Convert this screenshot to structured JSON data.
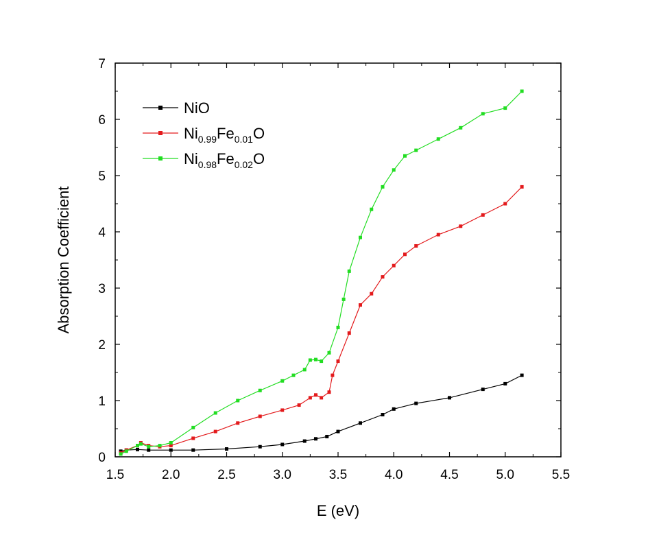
{
  "chart_data": {
    "type": "line",
    "title": "",
    "xlabel": "E (eV)",
    "ylabel": "Absorption Coefficient",
    "xlim": [
      1.5,
      5.5
    ],
    "ylim": [
      0,
      7
    ],
    "xticks": [
      "1.5",
      "2.0",
      "2.5",
      "3.0",
      "3.5",
      "4.0",
      "4.5",
      "5.0",
      "5.5"
    ],
    "yticks": [
      "0",
      "1",
      "2",
      "3",
      "4",
      "5",
      "6",
      "7"
    ],
    "grid": false,
    "legend_position": "top-left",
    "series": [
      {
        "name": "NiO",
        "name_parts": [
          {
            "t": "NiO",
            "sub": false
          }
        ],
        "color": "#000000",
        "x": [
          1.55,
          1.6,
          1.7,
          1.8,
          2.0,
          2.2,
          2.5,
          2.8,
          3.0,
          3.2,
          3.3,
          3.4,
          3.5,
          3.7,
          3.9,
          4.0,
          4.2,
          4.5,
          4.8,
          5.0,
          5.15
        ],
        "y": [
          0.1,
          0.12,
          0.13,
          0.12,
          0.12,
          0.12,
          0.14,
          0.18,
          0.22,
          0.28,
          0.32,
          0.36,
          0.45,
          0.6,
          0.75,
          0.85,
          0.95,
          1.05,
          1.2,
          1.3,
          1.45
        ]
      },
      {
        "name": "Ni0.99Fe0.01O",
        "name_parts": [
          {
            "t": "Ni",
            "sub": false
          },
          {
            "t": "0.99",
            "sub": true
          },
          {
            "t": "Fe",
            "sub": false
          },
          {
            "t": "0.01",
            "sub": true
          },
          {
            "t": "O",
            "sub": false
          }
        ],
        "color": "#e31a1c",
        "x": [
          1.55,
          1.6,
          1.7,
          1.73,
          1.8,
          1.9,
          2.0,
          2.2,
          2.4,
          2.6,
          2.8,
          3.0,
          3.15,
          3.25,
          3.3,
          3.35,
          3.42,
          3.45,
          3.5,
          3.6,
          3.7,
          3.8,
          3.9,
          4.0,
          4.1,
          4.2,
          4.4,
          4.6,
          4.8,
          5.0,
          5.15
        ],
        "y": [
          0.07,
          0.12,
          0.2,
          0.25,
          0.2,
          0.18,
          0.2,
          0.33,
          0.45,
          0.6,
          0.72,
          0.83,
          0.92,
          1.05,
          1.1,
          1.05,
          1.15,
          1.45,
          1.7,
          2.2,
          2.7,
          2.9,
          3.2,
          3.4,
          3.6,
          3.75,
          3.95,
          4.1,
          4.3,
          4.5,
          4.8
        ]
      },
      {
        "name": "Ni0.98Fe0.02O",
        "name_parts": [
          {
            "t": "Ni",
            "sub": false
          },
          {
            "t": "0.98",
            "sub": true
          },
          {
            "t": "Fe",
            "sub": false
          },
          {
            "t": "0.02",
            "sub": true
          },
          {
            "t": "O",
            "sub": false
          }
        ],
        "color": "#22dd22",
        "x": [
          1.55,
          1.6,
          1.7,
          1.73,
          1.8,
          1.9,
          2.0,
          2.2,
          2.4,
          2.6,
          2.8,
          3.0,
          3.1,
          3.2,
          3.25,
          3.3,
          3.35,
          3.42,
          3.5,
          3.55,
          3.6,
          3.7,
          3.8,
          3.9,
          4.0,
          4.1,
          4.2,
          4.4,
          4.6,
          4.8,
          5.0,
          5.15
        ],
        "y": [
          0.05,
          0.1,
          0.2,
          0.23,
          0.18,
          0.2,
          0.25,
          0.52,
          0.78,
          1.0,
          1.18,
          1.35,
          1.45,
          1.55,
          1.72,
          1.73,
          1.7,
          1.85,
          2.3,
          2.8,
          3.3,
          3.9,
          4.4,
          4.8,
          5.1,
          5.35,
          5.45,
          5.65,
          5.85,
          6.1,
          6.2,
          6.5
        ]
      }
    ]
  }
}
